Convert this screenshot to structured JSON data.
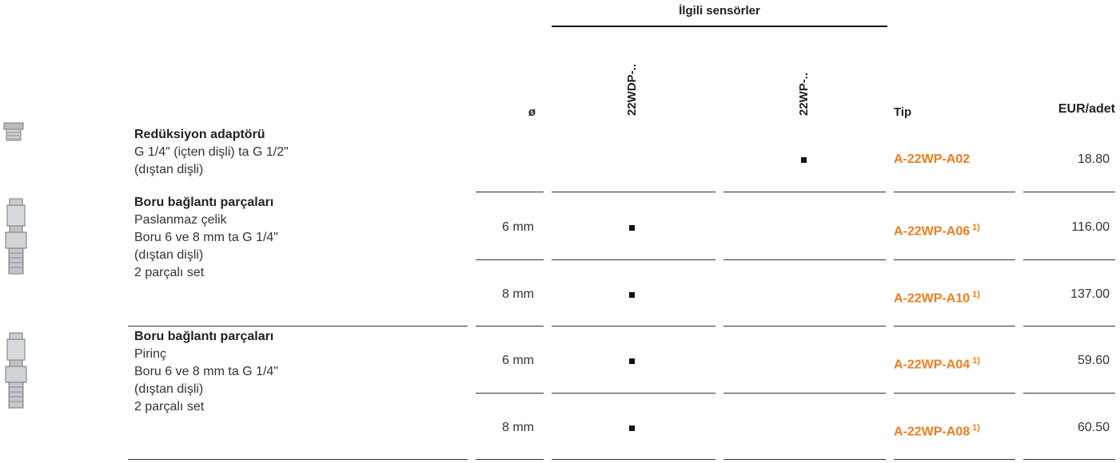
{
  "header": {
    "group_title": "İlgili sensörler",
    "diameter": "ø",
    "sensor_1": "22WDP-..",
    "sensor_2": "22WP-..",
    "type": "Tip",
    "price": "EUR/adet"
  },
  "products": [
    {
      "name": "Redüksiyon adaptörü",
      "lines": [
        "G 1/4\" (içten dişli) ta G 1/2\"",
        "(dıştan dişli)"
      ],
      "variants": [
        {
          "diameter": null,
          "sensor_1": false,
          "sensor_2": true,
          "type": "A-22WP-A02",
          "note": null,
          "price": "18.80"
        }
      ]
    },
    {
      "name": "Boru bağlantı parçaları",
      "lines": [
        "Paslanmaz çelik",
        "Boru 6 ve 8 mm ta G 1/4\"",
        "(dıştan dişli)",
        "2 parçalı set"
      ],
      "variants": [
        {
          "diameter": "6 mm",
          "sensor_1": true,
          "sensor_2": false,
          "type": "A-22WP-A06",
          "note": "1)",
          "price": "116.00"
        },
        {
          "diameter": "8 mm",
          "sensor_1": true,
          "sensor_2": false,
          "type": "A-22WP-A10",
          "note": "1)",
          "price": "137.00"
        }
      ]
    },
    {
      "name": "Boru bağlantı parçaları",
      "lines": [
        "Pirinç",
        "Boru 6 ve 8 mm ta G 1/4\"",
        "(dıştan dişli)",
        "2 parçalı set"
      ],
      "variants": [
        {
          "diameter": "6 mm",
          "sensor_1": true,
          "sensor_2": false,
          "type": "A-22WP-A04",
          "note": "1)",
          "price": "59.60"
        },
        {
          "diameter": "8 mm",
          "sensor_1": true,
          "sensor_2": false,
          "type": "A-22WP-A08",
          "note": "1)",
          "price": "60.50"
        }
      ]
    }
  ]
}
